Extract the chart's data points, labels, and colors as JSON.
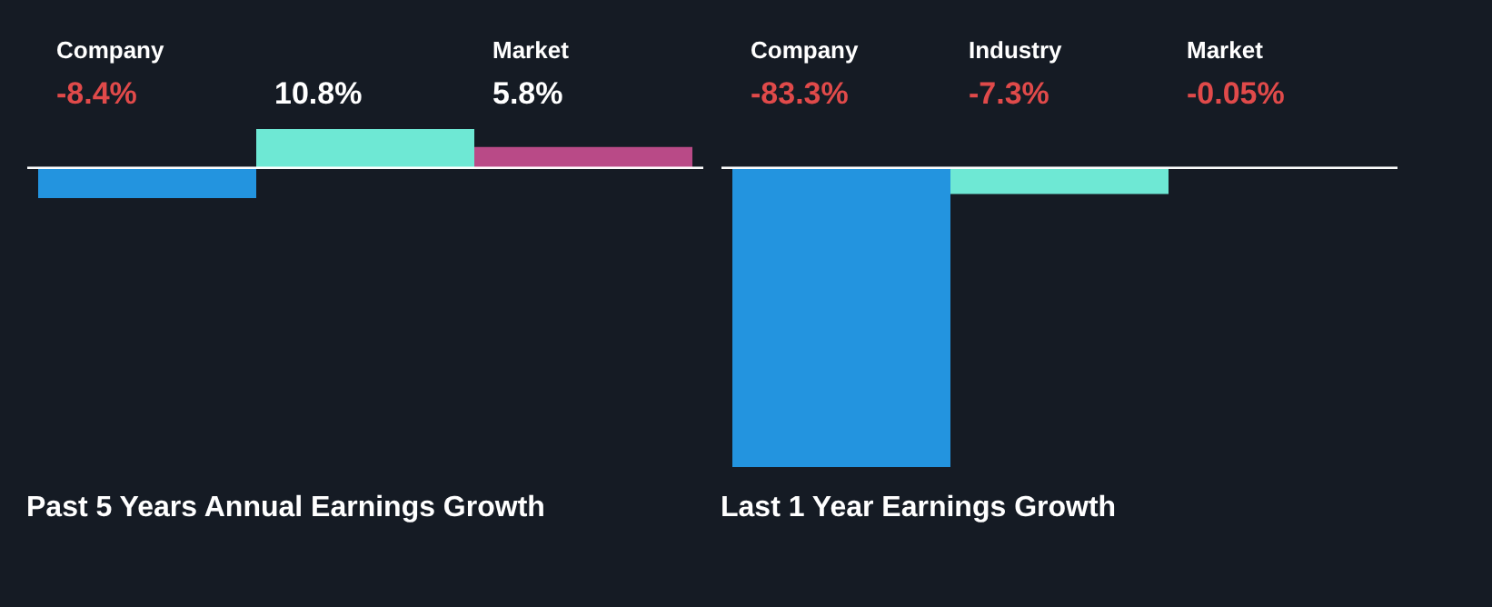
{
  "chart_data": [
    {
      "type": "bar",
      "title": "Past 5 Years Annual Earnings Growth",
      "categories": [
        "Company",
        null,
        "Market"
      ],
      "values": [
        -8.4,
        10.8,
        5.8
      ],
      "colors": [
        "#2394df",
        "#6ee8d4",
        "#b94a87"
      ],
      "value_labels": [
        "-8.4%",
        "10.8%",
        "5.8%"
      ]
    },
    {
      "type": "bar",
      "title": "Last 1 Year Earnings Growth",
      "categories": [
        "Company",
        "Industry",
        "Market"
      ],
      "values": [
        -83.3,
        -7.3,
        -0.05
      ],
      "colors": [
        "#2394df",
        "#6ee8d4",
        "#b94a87"
      ],
      "value_labels": [
        "-83.3%",
        "-7.3%",
        "-0.05%"
      ]
    }
  ]
}
